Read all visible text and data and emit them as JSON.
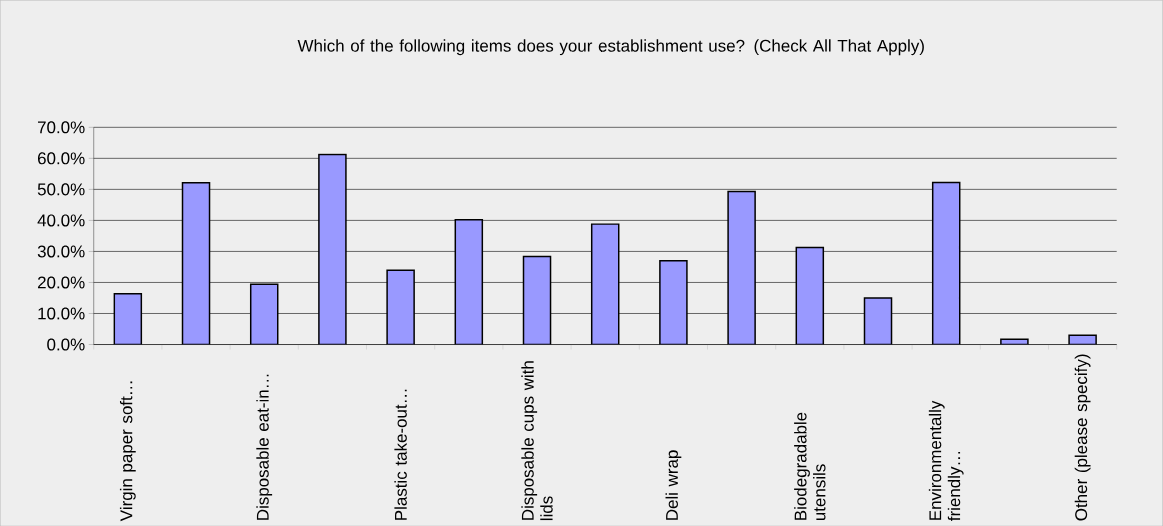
{
  "chart_data": {
    "type": "bar",
    "title": "Which of the following items does your establishment use?  (Check All That Apply)",
    "categories": [
      "Virgin paper soft…",
      null,
      "Disposable eat-in…",
      null,
      "Plastic take-out…",
      null,
      "Disposable cups with lids",
      null,
      "Deli wrap",
      null,
      "Biodegradable utensils",
      null,
      "Environmentally friendly…",
      null,
      "Other (please specify)"
    ],
    "values": [
      16.4,
      52.1,
      19.4,
      61.2,
      23.9,
      40.2,
      28.4,
      38.8,
      27.0,
      49.3,
      31.3,
      15.0,
      52.2,
      1.7,
      3.0
    ],
    "color": "#9999ff",
    "ylim": [
      0,
      70
    ],
    "yticks": [
      {
        "value": 0,
        "label": "0.0%"
      },
      {
        "value": 10,
        "label": "10.0%"
      },
      {
        "value": 20,
        "label": "20.0%"
      },
      {
        "value": 30,
        "label": "30.0%"
      },
      {
        "value": 40,
        "label": "40.0%"
      },
      {
        "value": 50,
        "label": "50.0%"
      },
      {
        "value": 60,
        "label": "60.0%"
      },
      {
        "value": 70,
        "label": "70.0%"
      }
    ],
    "grid": "y"
  }
}
